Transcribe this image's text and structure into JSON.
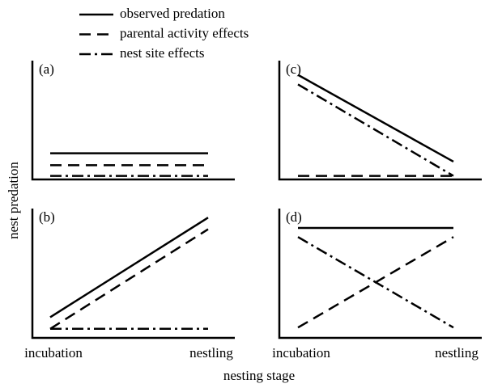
{
  "legend": [
    {
      "name": "observed predation",
      "color": "#000000",
      "dash": "solid"
    },
    {
      "name": "parental activity effects",
      "color": "#000000",
      "dash": "dashed"
    },
    {
      "name": "nest site effects",
      "color": "#000000",
      "dash": "dashdot"
    }
  ],
  "xlabel": "nesting stage",
  "ylabel": "nest predation",
  "chart_data": [
    {
      "type": "line",
      "label": "(a)",
      "ylim": [
        0,
        10
      ],
      "values": [
        [
          2.2,
          2.2
        ],
        [
          1.2,
          1.2
        ],
        [
          0.3,
          0.3
        ]
      ]
    },
    {
      "type": "line",
      "label": "(b)",
      "ylim": [
        0,
        10
      ],
      "categories": [
        "incubation",
        "nestling"
      ],
      "values": [
        [
          1.6,
          9.3
        ],
        [
          0.7,
          8.4
        ],
        [
          0.7,
          0.7
        ]
      ]
    },
    {
      "type": "line",
      "label": "(c)",
      "ylim": [
        0,
        10
      ],
      "values": [
        [
          8.8,
          1.5
        ],
        [
          0.3,
          0.3
        ],
        [
          8.0,
          0.3
        ]
      ]
    },
    {
      "type": "line",
      "label": "(d)",
      "ylim": [
        0,
        10
      ],
      "categories": [
        "incubation",
        "nestling"
      ],
      "values": [
        [
          8.5,
          8.5
        ],
        [
          0.8,
          7.8
        ],
        [
          7.8,
          0.8
        ]
      ]
    }
  ]
}
